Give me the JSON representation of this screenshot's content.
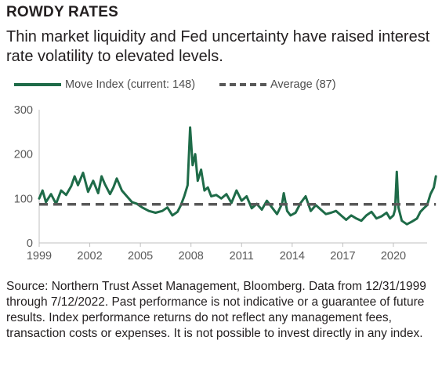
{
  "header": {
    "title": "ROWDY RATES",
    "subtitle": "Thin market liquidity and Fed uncertainty have raised interest rate volatility to elevated levels."
  },
  "legend": {
    "series1_label": "Move Index (current: 148)",
    "series2_label": "Average (87)"
  },
  "footer": {
    "source": "Source: Northern Trust Asset Management, Bloomberg. Data from 12/31/1999 through 7/12/2022. Past performance is not indicative or a guarantee of future results. Index performance returns do not reflect any management fees, transaction costs or expenses. It is not possible to invest directly in any index."
  },
  "colors": {
    "series": "#1e6b48",
    "average": "#595959",
    "axis": "#bfbfbf",
    "text": "#231f20"
  },
  "chart_data": {
    "type": "line",
    "title": "",
    "xlabel": "",
    "ylabel": "",
    "xlim": [
      1999,
      2022
    ],
    "ylim": [
      0,
      300
    ],
    "yticks": [
      0,
      100,
      200,
      300
    ],
    "xticks": [
      1999,
      2002,
      2005,
      2008,
      2011,
      2014,
      2017,
      2020
    ],
    "grid": false,
    "legend_position": "top",
    "series": [
      {
        "name": "Move Index (current: 148)",
        "style": "solid",
        "x": [
          1999.0,
          1999.2,
          1999.4,
          1999.7,
          2000.0,
          2000.3,
          2000.6,
          2000.9,
          2001.1,
          2001.3,
          2001.6,
          2001.9,
          2002.2,
          2002.5,
          2002.7,
          2002.9,
          2003.2,
          2003.4,
          2003.6,
          2003.9,
          2004.2,
          2004.5,
          2004.8,
          2005.1,
          2005.5,
          2005.9,
          2006.3,
          2006.6,
          2006.9,
          2007.2,
          2007.4,
          2007.6,
          2007.8,
          2007.95,
          2008.1,
          2008.25,
          2008.4,
          2008.6,
          2008.8,
          2009.0,
          2009.2,
          2009.5,
          2009.8,
          2010.1,
          2010.4,
          2010.7,
          2011.0,
          2011.3,
          2011.6,
          2011.9,
          2012.2,
          2012.5,
          2012.8,
          2013.1,
          2013.4,
          2013.5,
          2013.7,
          2013.9,
          2014.2,
          2014.5,
          2014.8,
          2015.1,
          2015.4,
          2015.7,
          2016.0,
          2016.3,
          2016.6,
          2016.9,
          2017.2,
          2017.5,
          2017.8,
          2018.1,
          2018.4,
          2018.7,
          2019.0,
          2019.3,
          2019.6,
          2019.8,
          2020.0,
          2020.1,
          2020.2,
          2020.3,
          2020.5,
          2020.8,
          2021.1,
          2021.4,
          2021.6,
          2021.8,
          2022.0,
          2022.2,
          2022.4,
          2022.52
        ],
        "values": [
          100,
          118,
          92,
          110,
          88,
          118,
          108,
          128,
          150,
          130,
          158,
          115,
          140,
          112,
          150,
          132,
          110,
          125,
          145,
          118,
          105,
          92,
          88,
          80,
          72,
          68,
          72,
          80,
          62,
          70,
          85,
          105,
          130,
          260,
          175,
          200,
          140,
          165,
          118,
          125,
          105,
          108,
          100,
          110,
          90,
          118,
          95,
          105,
          78,
          88,
          75,
          95,
          80,
          65,
          88,
          112,
          72,
          62,
          68,
          90,
          105,
          72,
          85,
          75,
          65,
          68,
          72,
          62,
          52,
          62,
          55,
          50,
          62,
          70,
          55,
          60,
          68,
          55,
          62,
          75,
          160,
          80,
          50,
          42,
          48,
          55,
          70,
          78,
          85,
          110,
          125,
          150
        ]
      },
      {
        "name": "Average (87)",
        "style": "dashed",
        "x": [
          1999,
          2022.52
        ],
        "values": [
          87,
          87
        ]
      }
    ]
  }
}
